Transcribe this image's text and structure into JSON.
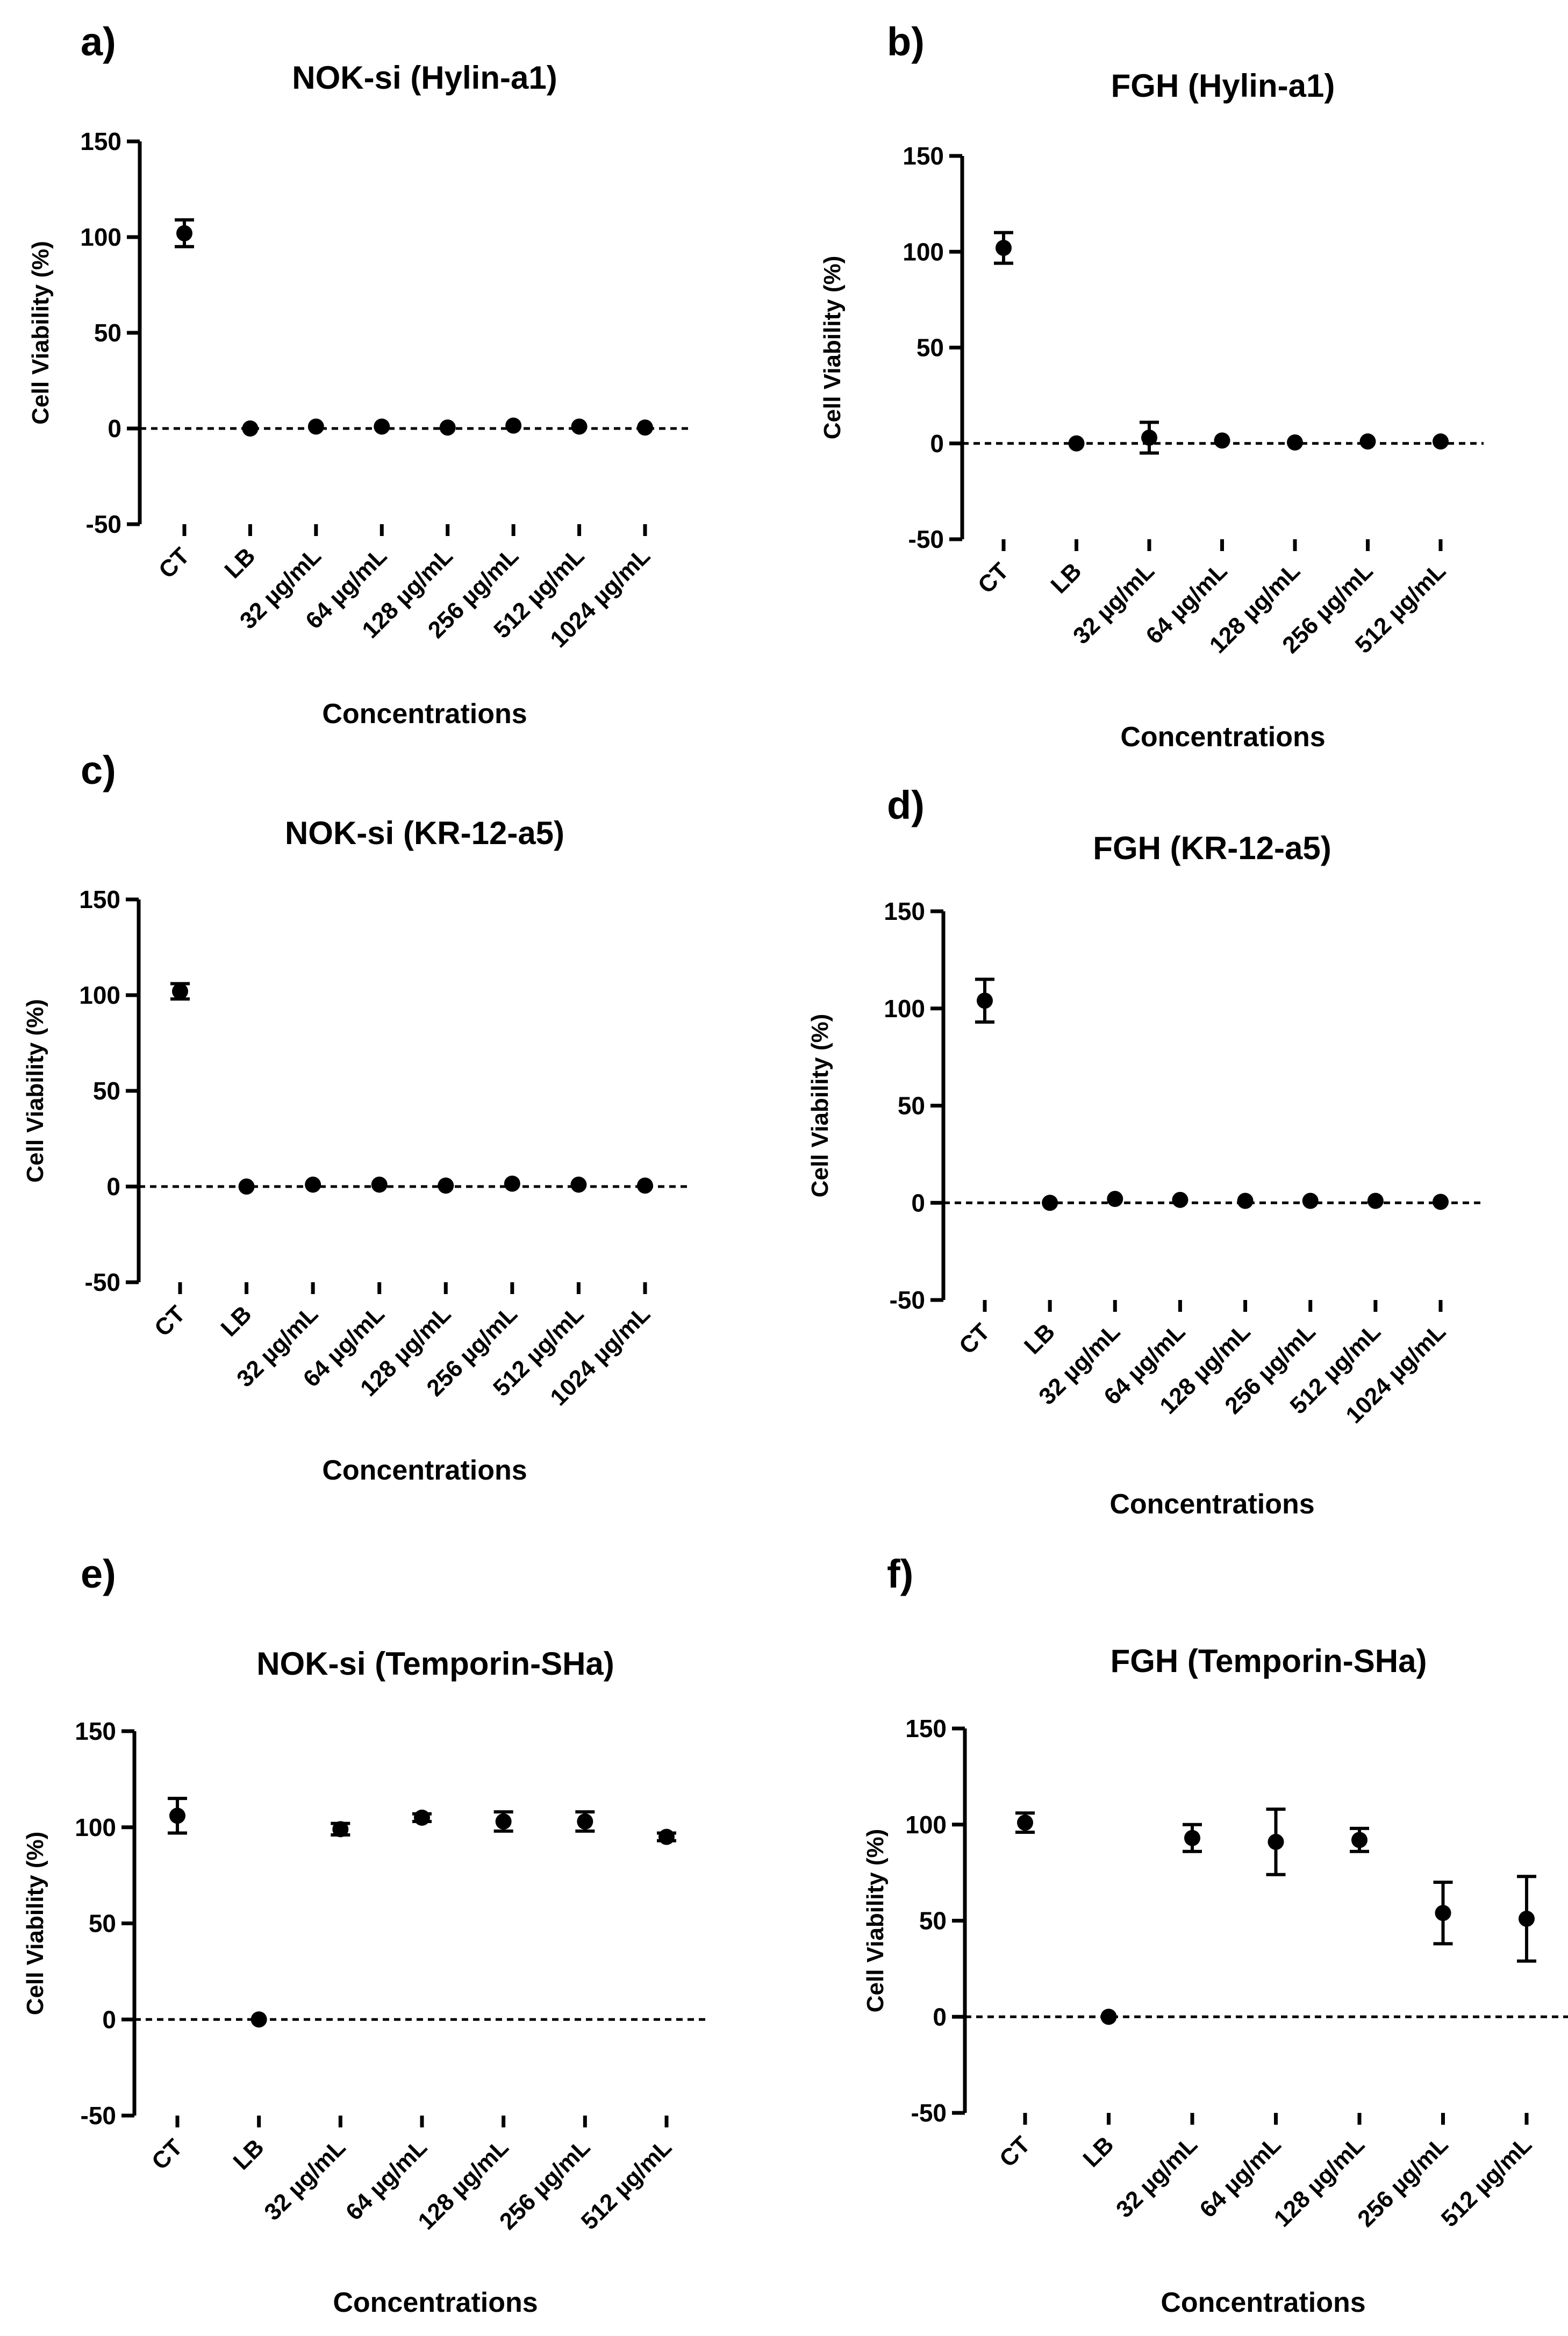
{
  "chart_data": [
    {
      "panel": "a)",
      "type": "scatter",
      "title": "NOK-si (Hylin-a1)",
      "xlabel": "Concentrations",
      "ylabel": "Cell Viability (%)",
      "ylim": [
        -50,
        150
      ],
      "yticks": [
        -50,
        0,
        50,
        100,
        150
      ],
      "reference_line": 0,
      "categories": [
        "CT",
        "LB",
        "32 µg/mL",
        "64 µg/mL",
        "128 µg/mL",
        "256 µg/mL",
        "512 µg/mL",
        "1024 µg/mL"
      ],
      "values": [
        102,
        0,
        1,
        1,
        0.5,
        1.5,
        1,
        0.5
      ],
      "errors": [
        7,
        0,
        0,
        0,
        0,
        0,
        0,
        0
      ]
    },
    {
      "panel": "b)",
      "type": "scatter",
      "title": "FGH (Hylin-a1)",
      "xlabel": "Concentrations",
      "ylabel": "Cell Viability (%)",
      "ylim": [
        -50,
        150
      ],
      "yticks": [
        -50,
        0,
        50,
        100,
        150
      ],
      "reference_line": 0,
      "categories": [
        "CT",
        "LB",
        "32 µg/mL",
        "64 µg/mL",
        "128 µg/mL",
        "256 µg/mL",
        "512 µg/mL"
      ],
      "values": [
        102,
        0,
        3,
        1.5,
        0.5,
        1,
        1
      ],
      "errors": [
        8,
        0,
        8,
        0,
        0,
        0,
        0
      ]
    },
    {
      "panel": "c)",
      "type": "scatter",
      "title": "NOK-si (KR-12-a5)",
      "xlabel": "Concentrations",
      "ylabel": "Cell Viability (%)",
      "ylim": [
        -50,
        150
      ],
      "yticks": [
        -50,
        0,
        50,
        100,
        150
      ],
      "reference_line": 0,
      "categories": [
        "CT",
        "LB",
        "32 µg/mL",
        "64 µg/mL",
        "128 µg/mL",
        "256 µg/mL",
        "512 µg/mL",
        "1024 µg/mL"
      ],
      "values": [
        102,
        0,
        1,
        1,
        0.5,
        1.5,
        1,
        0.5
      ],
      "errors": [
        4,
        0,
        0,
        0,
        0,
        0,
        0,
        0
      ]
    },
    {
      "panel": "d)",
      "type": "scatter",
      "title": "FGH (KR-12-a5)",
      "xlabel": "Concentrations",
      "ylabel": "Cell Viability (%)",
      "ylim": [
        -50,
        150
      ],
      "yticks": [
        -50,
        0,
        50,
        100,
        150
      ],
      "reference_line": 0,
      "categories": [
        "CT",
        "LB",
        "32 µg/mL",
        "64 µg/mL",
        "128 µg/mL",
        "256 µg/mL",
        "512 µg/mL",
        "1024 µg/mL"
      ],
      "values": [
        104,
        0,
        2,
        1.5,
        1,
        1,
        1,
        0.5
      ],
      "errors": [
        11,
        0,
        0,
        0,
        0,
        0,
        0,
        0
      ]
    },
    {
      "panel": "e)",
      "type": "scatter",
      "title": "NOK-si (Temporin-SHa)",
      "xlabel": "Concentrations",
      "ylabel": "Cell Viability (%)",
      "ylim": [
        -50,
        150
      ],
      "yticks": [
        -50,
        0,
        50,
        100,
        150
      ],
      "reference_line": 0,
      "categories": [
        "CT",
        "LB",
        "32 µg/mL",
        "64 µg/mL",
        "128 µg/mL",
        "256 µg/mL",
        "512 µg/mL"
      ],
      "values": [
        106,
        0,
        99,
        105,
        103,
        103,
        95
      ],
      "errors": [
        9,
        0,
        3,
        2,
        5,
        5,
        2
      ]
    },
    {
      "panel": "f)",
      "type": "scatter",
      "title": "FGH (Temporin-SHa)",
      "xlabel": "Concentrations",
      "ylabel": "Cell Viability (%)",
      "ylim": [
        -50,
        150
      ],
      "yticks": [
        -50,
        0,
        50,
        100,
        150
      ],
      "reference_line": 0,
      "categories": [
        "CT",
        "LB",
        "32 µg/mL",
        "64 µg/mL",
        "128 µg/mL",
        "256 µg/mL",
        "512 µg/mL"
      ],
      "values": [
        101,
        0,
        93,
        91,
        92,
        54,
        51
      ],
      "errors": [
        5,
        0,
        7,
        17,
        6,
        16,
        22
      ]
    }
  ]
}
